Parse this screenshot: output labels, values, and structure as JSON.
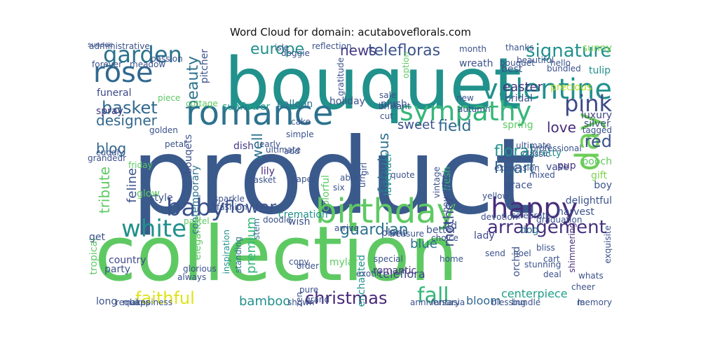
{
  "title": "Word Cloud for domain: acutaboveflorals.com",
  "words": [
    {
      "text": "product",
      "color": "#3b5a8c"
    },
    {
      "text": "collection",
      "color": "#5ec962"
    },
    {
      "text": "bouquet",
      "color": "#21918c"
    },
    {
      "text": "birthday",
      "color": "#5ec962"
    },
    {
      "text": "romance",
      "color": "#2c728e"
    },
    {
      "text": "happy",
      "color": "#472d7b"
    },
    {
      "text": "sympathy",
      "color": "#35b779"
    },
    {
      "text": "valentine",
      "color": "#21918c"
    },
    {
      "text": "rose",
      "color": "#31688e"
    },
    {
      "text": "white",
      "color": "#21918c"
    },
    {
      "text": "baby",
      "color": "#3b528b"
    },
    {
      "text": "garden",
      "color": "#2c728e"
    },
    {
      "text": "day",
      "color": "#6ece58"
    },
    {
      "text": "pink",
      "color": "#3e4989"
    },
    {
      "text": "arrangement",
      "color": "#46327e"
    },
    {
      "text": "signature",
      "color": "#21918c"
    },
    {
      "text": "christmas",
      "color": "#482878"
    },
    {
      "text": "fall",
      "color": "#35b779"
    },
    {
      "text": "faithful",
      "color": "#dde318"
    },
    {
      "text": "flower",
      "color": "#3b528b"
    },
    {
      "text": "guardian",
      "color": "#2c728e"
    },
    {
      "text": "basket",
      "color": "#31688e"
    },
    {
      "text": "teleflora",
      "color": "#3e4989"
    },
    {
      "text": "europe",
      "color": "#21918c"
    },
    {
      "text": "news",
      "color": "#443983"
    },
    {
      "text": "telefloras",
      "color": "#3b528b"
    },
    {
      "text": "designer",
      "color": "#31688e"
    },
    {
      "text": "beauty",
      "color": "#2c728e"
    },
    {
      "text": "sweet",
      "color": "#3b528b"
    },
    {
      "text": "field",
      "color": "#31688e"
    },
    {
      "text": "blog",
      "color": "#31688e"
    },
    {
      "text": "fabulous",
      "color": "#2c728e"
    },
    {
      "text": "heart",
      "color": "#31688e"
    },
    {
      "text": "floral",
      "color": "#21918c"
    },
    {
      "text": "love",
      "color": "#472d7b"
    },
    {
      "text": "red",
      "color": "#3b528b"
    },
    {
      "text": "easter",
      "color": "#46327e"
    },
    {
      "text": "tulip",
      "color": "#21918c"
    },
    {
      "text": "sunny",
      "color": "#7ad151"
    },
    {
      "text": "precious",
      "color": "#bddf26"
    },
    {
      "text": "luxury",
      "color": "#414487"
    },
    {
      "text": "silver",
      "color": "#3b528b"
    },
    {
      "text": "gift",
      "color": "#7ad151"
    },
    {
      "text": "boy",
      "color": "#3b528b"
    },
    {
      "text": "pooch",
      "color": "#5ec962"
    },
    {
      "text": "pup",
      "color": "#46327e"
    },
    {
      "text": "vase",
      "color": "#3e4989"
    },
    {
      "text": "pretty",
      "color": "#21918c"
    },
    {
      "text": "grace",
      "color": "#3b528b"
    },
    {
      "text": "harvest",
      "color": "#3b528b"
    },
    {
      "text": "centerpiece",
      "color": "#1f9e89"
    },
    {
      "text": "bloom",
      "color": "#31688e"
    },
    {
      "text": "blue",
      "color": "#2c728e"
    },
    {
      "text": "mother",
      "color": "#3e4989"
    },
    {
      "text": "premium",
      "color": "#35b779"
    },
    {
      "text": "well",
      "color": "#2c728e"
    },
    {
      "text": "lily",
      "color": "#472d7b"
    },
    {
      "text": "bamboo",
      "color": "#21918c"
    },
    {
      "text": "tribute",
      "color": "#5ec962"
    },
    {
      "text": "feline",
      "color": "#3b528b"
    },
    {
      "text": "spray",
      "color": "#443983"
    },
    {
      "text": "funeral",
      "color": "#3e4989"
    },
    {
      "text": "holiday",
      "color": "#3b528b"
    },
    {
      "text": "balloon",
      "color": "#2c728e"
    },
    {
      "text": "sunflower",
      "color": "#1f9e89"
    },
    {
      "text": "wreath",
      "color": "#3b528b"
    },
    {
      "text": "plush",
      "color": "#3b528b"
    },
    {
      "text": "bridal",
      "color": "#3b528b"
    },
    {
      "text": "lavender",
      "color": "#21918c"
    },
    {
      "text": "fresh",
      "color": "#35b779"
    },
    {
      "text": "spring",
      "color": "#5ec962"
    },
    {
      "text": "plant",
      "color": "#3b528b"
    },
    {
      "text": "wish",
      "color": "#3b528b"
    },
    {
      "text": "cremation",
      "color": "#21918c"
    },
    {
      "text": "country",
      "color": "#3e4989"
    },
    {
      "text": "party",
      "color": "#3b528b"
    },
    {
      "text": "tropical",
      "color": "#5ec962"
    },
    {
      "text": "get",
      "color": "#3b528b"
    },
    {
      "text": "elegance",
      "color": "#5ec962"
    },
    {
      "text": "contemporary",
      "color": "#2c728e"
    },
    {
      "text": "bouqets",
      "color": "#3b528b"
    },
    {
      "text": "stem",
      "color": "#31688e"
    },
    {
      "text": "romantic",
      "color": "#46327e"
    },
    {
      "text": "enchanted",
      "color": "#21918c"
    },
    {
      "text": "mylar",
      "color": "#5ec962"
    },
    {
      "text": "orchid",
      "color": "#3b528b"
    },
    {
      "text": "dog",
      "color": "#2c728e"
    },
    {
      "text": "lady",
      "color": "#3e4989"
    },
    {
      "text": "better",
      "color": "#3b528b"
    },
    {
      "text": "ftd",
      "color": "#3b528b"
    },
    {
      "text": "colorful",
      "color": "#5ec962"
    },
    {
      "text": "glow",
      "color": "#5ec962"
    },
    {
      "text": "dish",
      "color": "#443983"
    },
    {
      "text": "shimmering",
      "color": "#472d7b"
    },
    {
      "text": "delightful",
      "color": "#3b528b"
    },
    {
      "text": "exquisite",
      "color": "#3b528b"
    },
    {
      "text": "long",
      "color": "#3b528b"
    },
    {
      "text": "inspiration",
      "color": "#21918c"
    },
    {
      "text": "standing",
      "color": "#2c728e"
    },
    {
      "text": "copy",
      "color": "#3b528b"
    },
    {
      "text": "exotic",
      "color": "#3b528b"
    },
    {
      "text": "home",
      "color": "#3b528b"
    },
    {
      "text": "cheer",
      "color": "#3b528b"
    },
    {
      "text": "bundle",
      "color": "#3b528b"
    },
    {
      "text": "zen",
      "color": "#3b528b"
    },
    {
      "text": "pitcher",
      "color": "#3b528b"
    },
    {
      "text": "best",
      "color": "#3b528b"
    },
    {
      "text": "bouquet",
      "color": "#3b528b"
    },
    {
      "text": "style",
      "color": "#3b528b"
    },
    {
      "text": "urn",
      "color": "#3b528b"
    },
    {
      "text": "girl",
      "color": "#3b528b"
    },
    {
      "text": "bountiful",
      "color": "#3b528b"
    },
    {
      "text": "vintage",
      "color": "#3b528b"
    },
    {
      "text": "celebrate",
      "color": "#3b528b"
    },
    {
      "text": "pastel",
      "color": "#5ec962"
    },
    {
      "text": "gratitude",
      "color": "#3b528b"
    },
    {
      "text": "isle",
      "color": "#3b528b"
    },
    {
      "text": "doggie",
      "color": "#3b528b"
    },
    {
      "text": "option",
      "color": "#5ec962"
    },
    {
      "text": "reflection",
      "color": "#3b528b"
    },
    {
      "text": "month",
      "color": "#3b528b"
    },
    {
      "text": "thanks",
      "color": "#3b528b"
    },
    {
      "text": "beautiful",
      "color": "#3b528b"
    },
    {
      "text": "meadow",
      "color": "#3b528b"
    },
    {
      "text": "forever",
      "color": "#3b528b"
    },
    {
      "text": "passion",
      "color": "#3b528b"
    },
    {
      "text": "administrative",
      "color": "#3b528b"
    },
    {
      "text": "cottage",
      "color": "#5ec962"
    },
    {
      "text": "piece",
      "color": "#5ec962"
    },
    {
      "text": "cake",
      "color": "#3b528b"
    },
    {
      "text": "simple",
      "color": "#3b528b"
    },
    {
      "text": "golden",
      "color": "#3b528b"
    },
    {
      "text": "petal",
      "color": "#3b528b"
    },
    {
      "text": "cuddly",
      "color": "#3b528b"
    },
    {
      "text": "grandeur",
      "color": "#3b528b"
    },
    {
      "text": "friday",
      "color": "#5ec962"
    },
    {
      "text": "casket",
      "color": "#3b528b"
    },
    {
      "text": "paper",
      "color": "#3b528b"
    },
    {
      "text": "add",
      "color": "#3b528b"
    },
    {
      "text": "ultimate",
      "color": "#3b528b"
    },
    {
      "text": "early",
      "color": "#3b528b"
    },
    {
      "text": "able",
      "color": "#3b528b"
    },
    {
      "text": "six",
      "color": "#3b528b"
    },
    {
      "text": "cut",
      "color": "#3b528b"
    },
    {
      "text": "quote",
      "color": "#3b528b"
    },
    {
      "text": "sale",
      "color": "#3b528b"
    },
    {
      "text": "brilliant",
      "color": "#3b528b"
    },
    {
      "text": "new",
      "color": "#3b528b"
    },
    {
      "text": "autumn",
      "color": "#3b528b"
    },
    {
      "text": "professional",
      "color": "#3b528b"
    },
    {
      "text": "tagged",
      "color": "#3b528b"
    },
    {
      "text": "classic",
      "color": "#3b528b"
    },
    {
      "text": "expression",
      "color": "#3b528b"
    },
    {
      "text": "ultimate",
      "color": "#3b528b"
    },
    {
      "text": "mixed",
      "color": "#3b528b"
    },
    {
      "text": "yellow",
      "color": "#3b528b"
    },
    {
      "text": "devotion",
      "color": "#3b528b"
    },
    {
      "text": "graduation",
      "color": "#3b528b"
    },
    {
      "text": "sparkle",
      "color": "#3b528b"
    },
    {
      "text": "fashion",
      "color": "#3b528b"
    },
    {
      "text": "doodle",
      "color": "#3b528b"
    },
    {
      "text": "arrive",
      "color": "#3b528b"
    },
    {
      "text": "treasure",
      "color": "#3b528b"
    },
    {
      "text": "choice",
      "color": "#3b528b"
    },
    {
      "text": "send",
      "color": "#3b528b"
    },
    {
      "text": "noel",
      "color": "#3b528b"
    },
    {
      "text": "stunning",
      "color": "#3b528b"
    },
    {
      "text": "bliss",
      "color": "#3b528b"
    },
    {
      "text": "cart",
      "color": "#3b528b"
    },
    {
      "text": "deal",
      "color": "#3b528b"
    },
    {
      "text": "whats",
      "color": "#3b528b"
    },
    {
      "text": "la",
      "color": "#3b528b"
    },
    {
      "text": "memory",
      "color": "#3b528b"
    },
    {
      "text": "blessing",
      "color": "#3b528b"
    },
    {
      "text": "fantasia",
      "color": "#3b528b"
    },
    {
      "text": "glorious",
      "color": "#3b528b"
    },
    {
      "text": "always",
      "color": "#3b528b"
    },
    {
      "text": "happiness",
      "color": "#3b528b"
    },
    {
      "text": "make",
      "color": "#3b528b"
    },
    {
      "text": "requires",
      "color": "#3b528b"
    },
    {
      "text": "shown",
      "color": "#3b528b"
    },
    {
      "text": "order",
      "color": "#3b528b"
    },
    {
      "text": "pure",
      "color": "#3b528b"
    },
    {
      "text": "grand",
      "color": "#3b528b"
    },
    {
      "text": "special",
      "color": "#3b528b"
    },
    {
      "text": "anniversary",
      "color": "#3b528b"
    },
    {
      "text": "bundled",
      "color": "#3b528b"
    },
    {
      "text": "hello",
      "color": "#3b528b"
    },
    {
      "text": "sundae",
      "color": "#3b528b"
    }
  ]
}
